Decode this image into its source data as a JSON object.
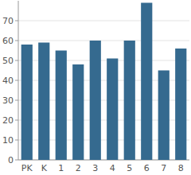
{
  "chart_data": {
    "type": "bar",
    "categories": [
      "PK",
      "K",
      "1",
      "2",
      "3",
      "4",
      "5",
      "6",
      "7",
      "8"
    ],
    "values": [
      58,
      59,
      55,
      48,
      60,
      51,
      60,
      79,
      45,
      56
    ],
    "color": "#356a8f",
    "ylim": [
      0,
      80
    ],
    "yticks": [
      0,
      10,
      20,
      30,
      40,
      50,
      60,
      70
    ],
    "grid": true
  }
}
